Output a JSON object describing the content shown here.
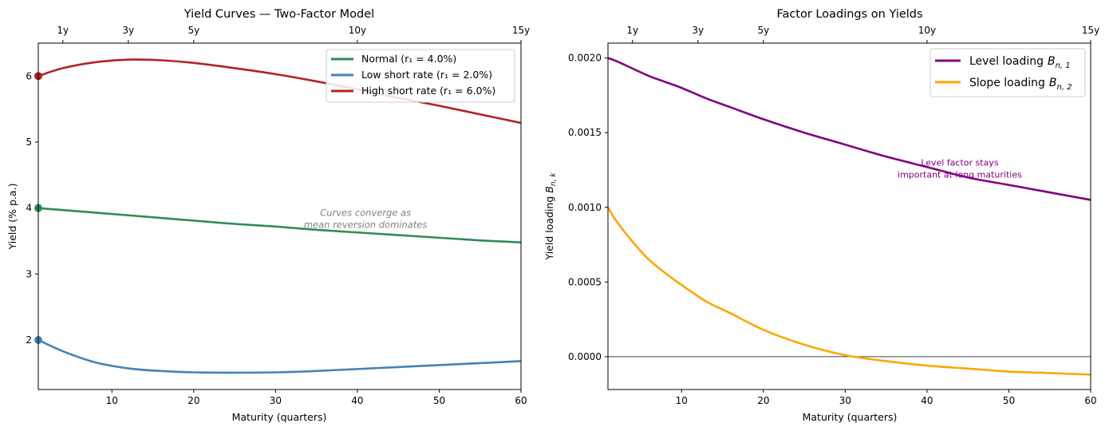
{
  "chart_data": [
    {
      "type": "line",
      "title": "Yield Curves — Two-Factor Model",
      "xlabel": "Maturity (quarters)",
      "ylabel": "Yield (% p.a.)",
      "xlim": [
        1,
        60
      ],
      "ylim": [
        1.25,
        6.5
      ],
      "xticks": [
        10,
        20,
        30,
        40,
        50,
        60
      ],
      "yticks": [
        2,
        3,
        4,
        5,
        6
      ],
      "top_axis": {
        "ticks": [
          4,
          12,
          20,
          40,
          60
        ],
        "labels": [
          "1y",
          "3y",
          "5y",
          "10y",
          "15y"
        ]
      },
      "x": [
        1,
        4,
        8,
        12,
        16,
        20,
        25,
        30,
        35,
        40,
        45,
        50,
        55,
        60
      ],
      "series": [
        {
          "name": "Normal (r₁ = 4.0%)",
          "color": "#2e8b57",
          "values": [
            4.0,
            3.97,
            3.93,
            3.89,
            3.85,
            3.81,
            3.76,
            3.72,
            3.67,
            3.63,
            3.59,
            3.55,
            3.51,
            3.48
          ]
        },
        {
          "name": "Low short rate (r₁ = 2.0%)",
          "color": "#4682b4",
          "values": [
            2.0,
            1.83,
            1.66,
            1.57,
            1.53,
            1.51,
            1.505,
            1.51,
            1.53,
            1.56,
            1.59,
            1.62,
            1.65,
            1.68
          ]
        },
        {
          "name": "High short rate (r₁ = 6.0%)",
          "color": "#b22222",
          "values": [
            6.0,
            6.12,
            6.21,
            6.25,
            6.24,
            6.2,
            6.12,
            6.03,
            5.92,
            5.8,
            5.67,
            5.55,
            5.42,
            5.29
          ]
        }
      ],
      "start_markers": [
        {
          "x": 1,
          "y": 6.0,
          "color": "#b22222"
        },
        {
          "x": 1,
          "y": 4.0,
          "color": "#2e8b57"
        },
        {
          "x": 1,
          "y": 2.0,
          "color": "#4682b4"
        }
      ],
      "annotation": {
        "lines": [
          "Curves converge as",
          "mean reversion dominates"
        ],
        "x": 41,
        "y": 3.88,
        "color": "#808080"
      },
      "legend": "top-right"
    },
    {
      "type": "line",
      "title": "Factor Loadings on Yields",
      "xlabel": "Maturity (quarters)",
      "ylabel": "Yield loading",
      "ylabel_math": "B",
      "ylabel_math_sub": "n, k",
      "xlim": [
        1,
        60
      ],
      "ylim": [
        -0.00022,
        0.0021
      ],
      "xticks": [
        10,
        20,
        30,
        40,
        50,
        60
      ],
      "yticks": [
        0.0,
        0.0005,
        0.001,
        0.0015,
        0.002
      ],
      "ytick_labels": [
        "0.0000",
        "0.0005",
        "0.0010",
        "0.0015",
        "0.0020"
      ],
      "top_axis": {
        "ticks": [
          4,
          12,
          20,
          40,
          60
        ],
        "labels": [
          "1y",
          "3y",
          "5y",
          "10y",
          "15y"
        ]
      },
      "hline": 0,
      "x": [
        1,
        2,
        4,
        6,
        8,
        10,
        13,
        16,
        20,
        25,
        30,
        35,
        40,
        45,
        50,
        55,
        60
      ],
      "series": [
        {
          "name": "Level loading",
          "math": "B",
          "math_sub": "n, 1",
          "color": "#800080",
          "values": [
            0.002,
            0.00198,
            0.00193,
            0.00188,
            0.00184,
            0.0018,
            0.00173,
            0.00167,
            0.00159,
            0.0015,
            0.00142,
            0.00134,
            0.00127,
            0.0012,
            0.00115,
            0.0011,
            0.00105
          ]
        },
        {
          "name": "Slope loading",
          "math": "B",
          "math_sub": "n, 2",
          "color": "#ffa500",
          "values": [
            0.001,
            0.00091,
            0.00077,
            0.00065,
            0.00056,
            0.00048,
            0.00037,
            0.00029,
            0.00018,
            8e-05,
            1e-05,
            -3e-05,
            -6e-05,
            -8e-05,
            -0.0001,
            -0.00011,
            -0.00012
          ]
        }
      ],
      "annotation": {
        "lines": [
          "Level factor stays",
          "important at long maturities"
        ],
        "x": 44,
        "y": 0.00128,
        "color": "#800080"
      },
      "legend": "top-right"
    }
  ]
}
